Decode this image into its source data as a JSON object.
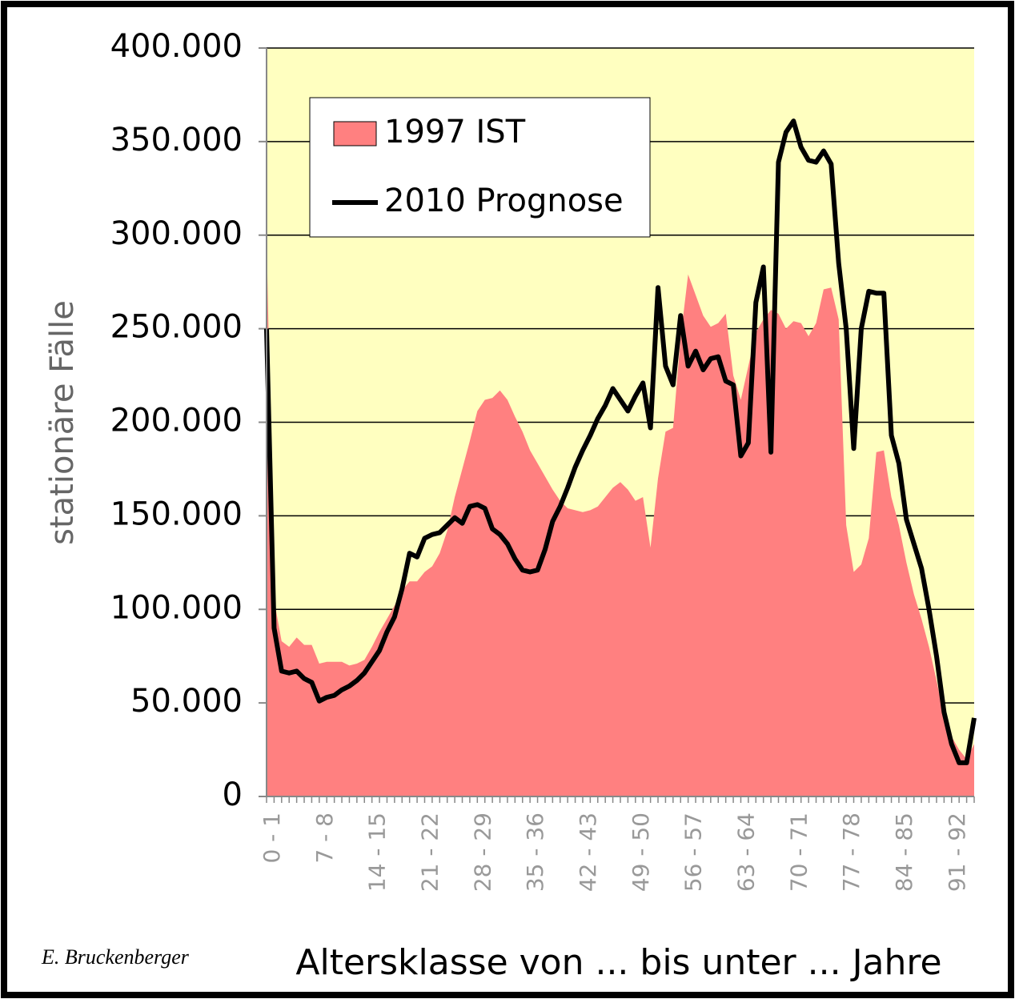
{
  "chart_data": {
    "type": "area-line",
    "y_label": "stationäre Fälle",
    "x_label": "Altersklasse von ... bis unter ... Jahre",
    "note": "E. Bruckenberger",
    "categories": [
      "0 - 1",
      null,
      null,
      null,
      null,
      null,
      null,
      "7 - 8",
      null,
      null,
      null,
      null,
      null,
      null,
      "14 - 15",
      null,
      null,
      null,
      null,
      null,
      null,
      "21 - 22",
      null,
      null,
      null,
      null,
      null,
      null,
      "28 - 29",
      null,
      null,
      null,
      null,
      null,
      null,
      "35 - 36",
      null,
      null,
      null,
      null,
      null,
      null,
      "42 - 43",
      null,
      null,
      null,
      null,
      null,
      null,
      "49 - 50",
      null,
      null,
      null,
      null,
      null,
      null,
      "56 - 57",
      null,
      null,
      null,
      null,
      null,
      null,
      "63 - 64",
      null,
      null,
      null,
      null,
      null,
      null,
      "70 - 71",
      null,
      null,
      null,
      null,
      null,
      null,
      "77 - 78",
      null,
      null,
      null,
      null,
      null,
      null,
      "84 - 85",
      null,
      null,
      null,
      null,
      null,
      null,
      "91 - 92",
      null,
      null,
      null
    ],
    "series": [
      {
        "name": "1997 IST",
        "kind": "area",
        "color": "#ff8080",
        "values": [
          300000,
          105000,
          83000,
          80000,
          85000,
          81000,
          81000,
          71000,
          72000,
          72000,
          72000,
          70000,
          71000,
          73000,
          80000,
          88000,
          95000,
          102000,
          110000,
          115000,
          115000,
          120000,
          123000,
          130000,
          142000,
          160000,
          175000,
          190000,
          206000,
          212000,
          213000,
          217000,
          212000,
          203000,
          195000,
          185000,
          178000,
          171000,
          164000,
          158000,
          154000,
          153000,
          152000,
          153000,
          155000,
          160000,
          165000,
          168000,
          164000,
          158000,
          160000,
          133000,
          170000,
          195000,
          197000,
          245000,
          279000,
          268000,
          257000,
          251000,
          253000,
          258000,
          225000,
          212000,
          230000,
          248000,
          255000,
          260000,
          258000,
          250000,
          254000,
          253000,
          246000,
          253000,
          271000,
          272000,
          255000,
          145000,
          120000,
          124000,
          138000,
          184000,
          185000,
          160000,
          145000,
          125000,
          108000,
          95000,
          80000,
          62000,
          42000,
          32000,
          25000,
          20000,
          28000
        ]
      },
      {
        "name": "2010 Prognose",
        "kind": "line",
        "color": "#000000",
        "values": [
          250000,
          90000,
          67000,
          66000,
          67000,
          63000,
          61000,
          51000,
          53000,
          54000,
          57000,
          59000,
          62000,
          66000,
          72000,
          78000,
          88000,
          96000,
          111000,
          130000,
          128000,
          138000,
          140000,
          141000,
          145000,
          149000,
          146000,
          155000,
          156000,
          154000,
          143000,
          140000,
          135000,
          127000,
          121000,
          120000,
          121000,
          132000,
          147000,
          155000,
          165000,
          176000,
          185000,
          193000,
          202000,
          209000,
          218000,
          212000,
          206000,
          214000,
          221000,
          197000,
          272000,
          230000,
          220000,
          257000,
          230000,
          238000,
          228000,
          234000,
          235000,
          222000,
          220000,
          182000,
          189000,
          264000,
          283000,
          184000,
          339000,
          355000,
          361000,
          347000,
          340000,
          339000,
          345000,
          338000,
          285000,
          250000,
          186000,
          250000,
          270000,
          269000,
          269000,
          193000,
          178000,
          148000,
          135000,
          122000,
          100000,
          75000,
          45000,
          28000,
          18000,
          18000,
          42000
        ]
      }
    ],
    "ylim": [
      0,
      400000
    ],
    "yticks": [
      0,
      {
        "value": 50000,
        "label": "50.000"
      },
      {
        "value": 100000,
        "label": "100.000"
      },
      {
        "value": 150000,
        "label": "150.000"
      },
      {
        "value": 200000,
        "label": "200.000"
      },
      {
        "value": 250000,
        "label": "250.000"
      },
      {
        "value": 300000,
        "label": "300.000"
      },
      {
        "value": 350000,
        "label": "350.000"
      },
      {
        "value": 400000,
        "label": "400.000"
      }
    ],
    "grid": true,
    "background": "#ffffc0",
    "legend": "top-left"
  }
}
